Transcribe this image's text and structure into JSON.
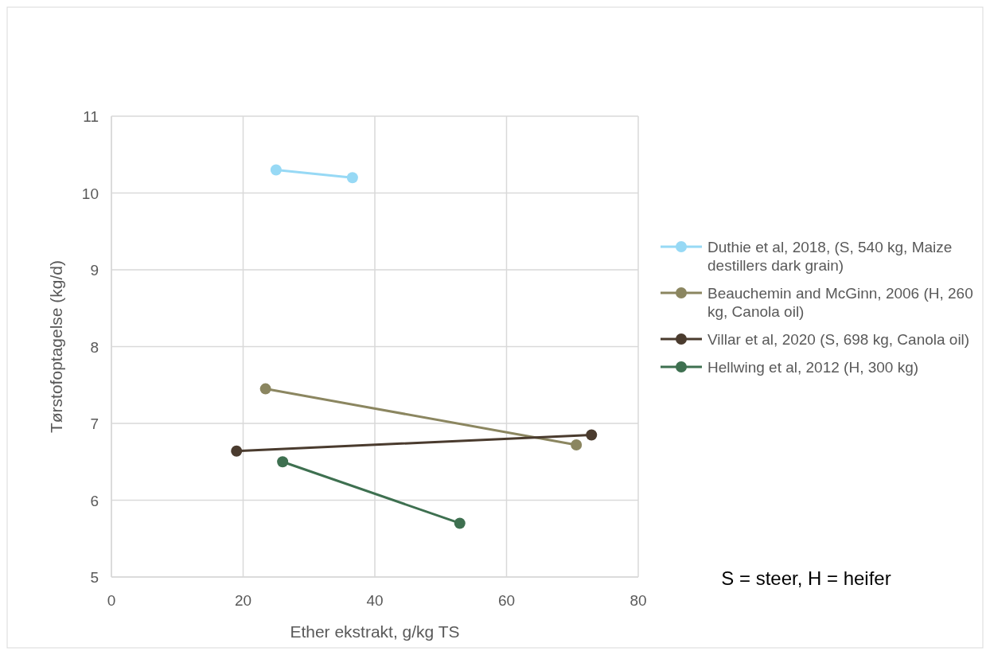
{
  "chart_data": {
    "type": "line",
    "xlabel": "Ether ekstrakt, g/kg TS",
    "ylabel": "Tørstofoptagelse (kg/d)",
    "xlim": [
      0,
      80
    ],
    "xticks": [
      0,
      20,
      40,
      60,
      80
    ],
    "ylim": [
      5,
      11
    ],
    "yticks": [
      5,
      6,
      7,
      8,
      9,
      10,
      11
    ],
    "grid": true,
    "legend": "right",
    "marker": "circle",
    "line_style": "solid",
    "annotations": [
      "S = steer, H = heifer"
    ],
    "series": [
      {
        "name": "Duthie et al, 2018, (S, 540 kg, Maize destillers dark grain)",
        "color": "#97d9f5",
        "x": [
          25,
          36.6
        ],
        "values": [
          10.3,
          10.2
        ]
      },
      {
        "name": "Beauchemin and McGinn, 2006 (H, 260 kg, Canola oil)",
        "color": "#8b8660",
        "x": [
          23.4,
          70.6
        ],
        "values": [
          7.45,
          6.72
        ]
      },
      {
        "name": "Villar et al, 2020 (S, 698 kg, Canola oil)",
        "color": "#4a3b2e",
        "x": [
          19,
          72.9
        ],
        "values": [
          6.64,
          6.85
        ]
      },
      {
        "name": "Hellwing et al, 2012 (H, 300 kg)",
        "color": "#3e7050",
        "x": [
          26,
          52.9
        ],
        "values": [
          6.5,
          5.7
        ]
      }
    ]
  }
}
